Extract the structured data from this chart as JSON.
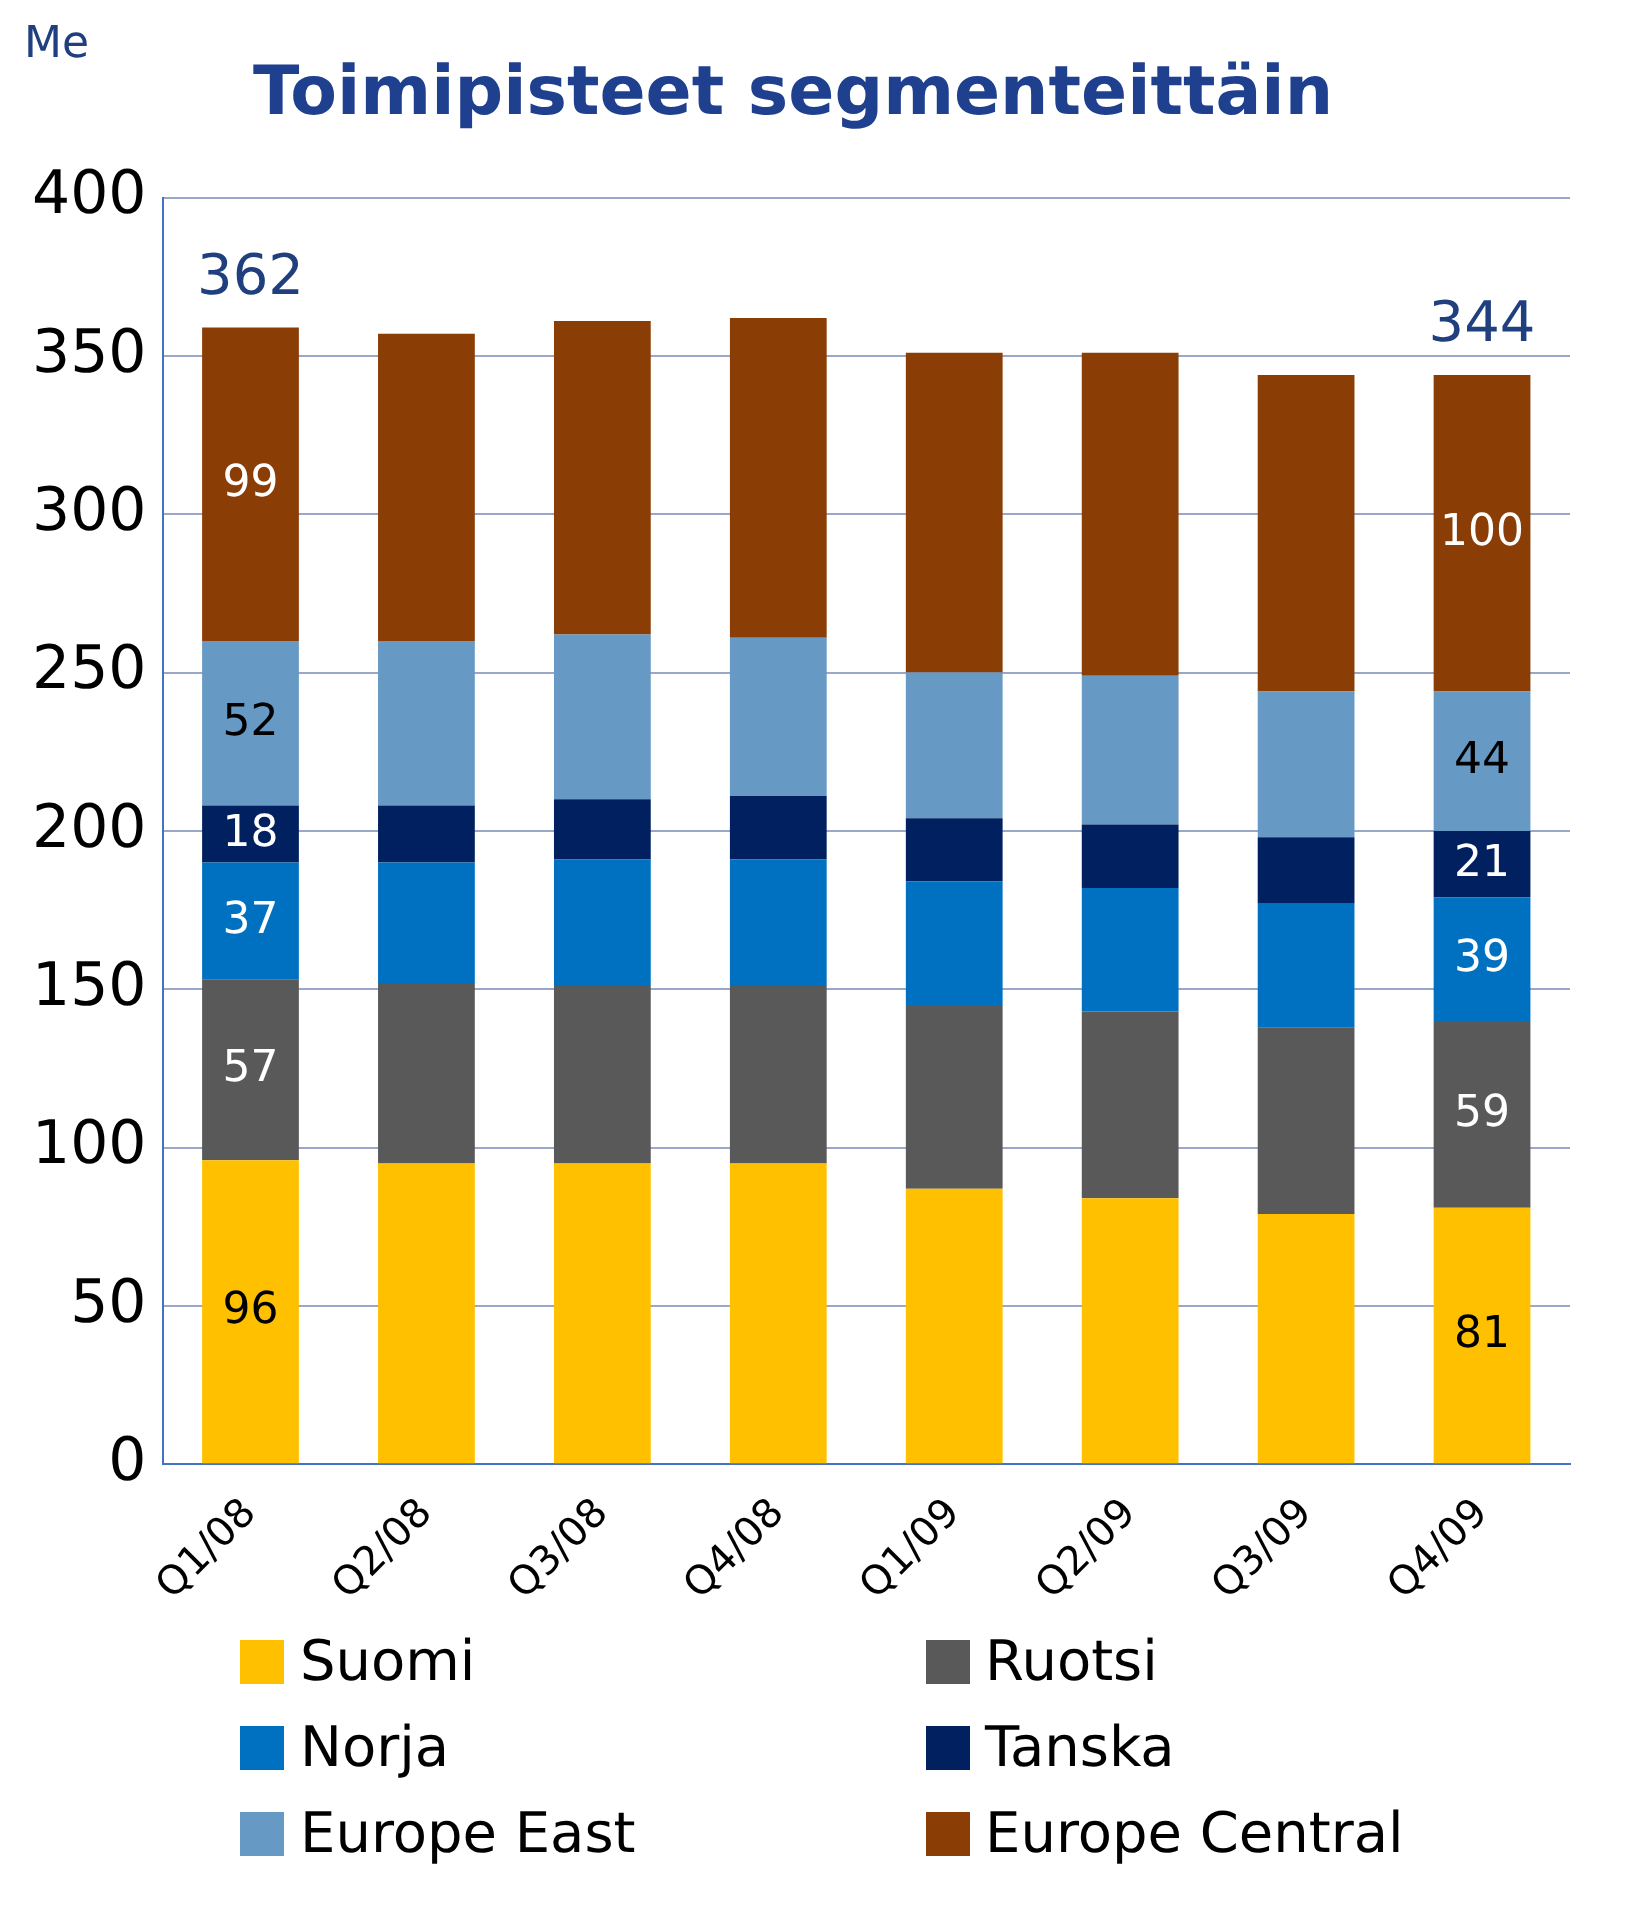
{
  "chart_data": {
    "type": "bar",
    "title": "Toimipisteet segmenteittäin",
    "ylabel": "Me",
    "stacked": true,
    "categories": [
      "Q1/08",
      "Q2/08",
      "Q3/08",
      "Q4/08",
      "Q1/09",
      "Q2/09",
      "Q3/09",
      "Q4/09"
    ],
    "series": [
      {
        "name": "Suomi",
        "color": "#ffc000",
        "values": [
          96,
          95,
          95,
          95,
          87,
          84,
          79,
          81
        ],
        "value_labels": [
          "96",
          null,
          null,
          null,
          null,
          null,
          null,
          "81"
        ]
      },
      {
        "name": "Ruotsi",
        "color": "#595959",
        "values": [
          57,
          57,
          56,
          56,
          58,
          59,
          59,
          59
        ],
        "value_labels": [
          "57",
          null,
          null,
          null,
          null,
          null,
          null,
          "59"
        ]
      },
      {
        "name": "Norja",
        "color": "#0070c0",
        "values": [
          37,
          38,
          40,
          40,
          39,
          39,
          39,
          39
        ],
        "value_labels": [
          "37",
          null,
          null,
          null,
          null,
          null,
          null,
          "39"
        ]
      },
      {
        "name": "Tanska",
        "color": "#002060",
        "values": [
          18,
          18,
          19,
          20,
          20,
          20,
          21,
          21
        ],
        "value_labels": [
          "18",
          null,
          null,
          null,
          null,
          null,
          null,
          "21"
        ]
      },
      {
        "name": "Europe East",
        "color": "#6699c4",
        "values": [
          52,
          52,
          52,
          50,
          46,
          47,
          46,
          44
        ],
        "value_labels": [
          "52",
          null,
          null,
          null,
          null,
          null,
          null,
          "44"
        ]
      },
      {
        "name": "Europe Central",
        "color": "#8b3d06",
        "values": [
          99,
          97,
          99,
          101,
          101,
          102,
          100,
          100
        ],
        "value_labels": [
          "99",
          null,
          null,
          null,
          null,
          null,
          null,
          "100"
        ]
      }
    ],
    "totals": [
      "362",
      null,
      null,
      null,
      null,
      null,
      null,
      "344"
    ],
    "ylim": [
      0,
      400
    ],
    "yticks": [
      0,
      50,
      100,
      150,
      200,
      250,
      300,
      350,
      400
    ],
    "grid": "y",
    "legend": "bottom"
  }
}
